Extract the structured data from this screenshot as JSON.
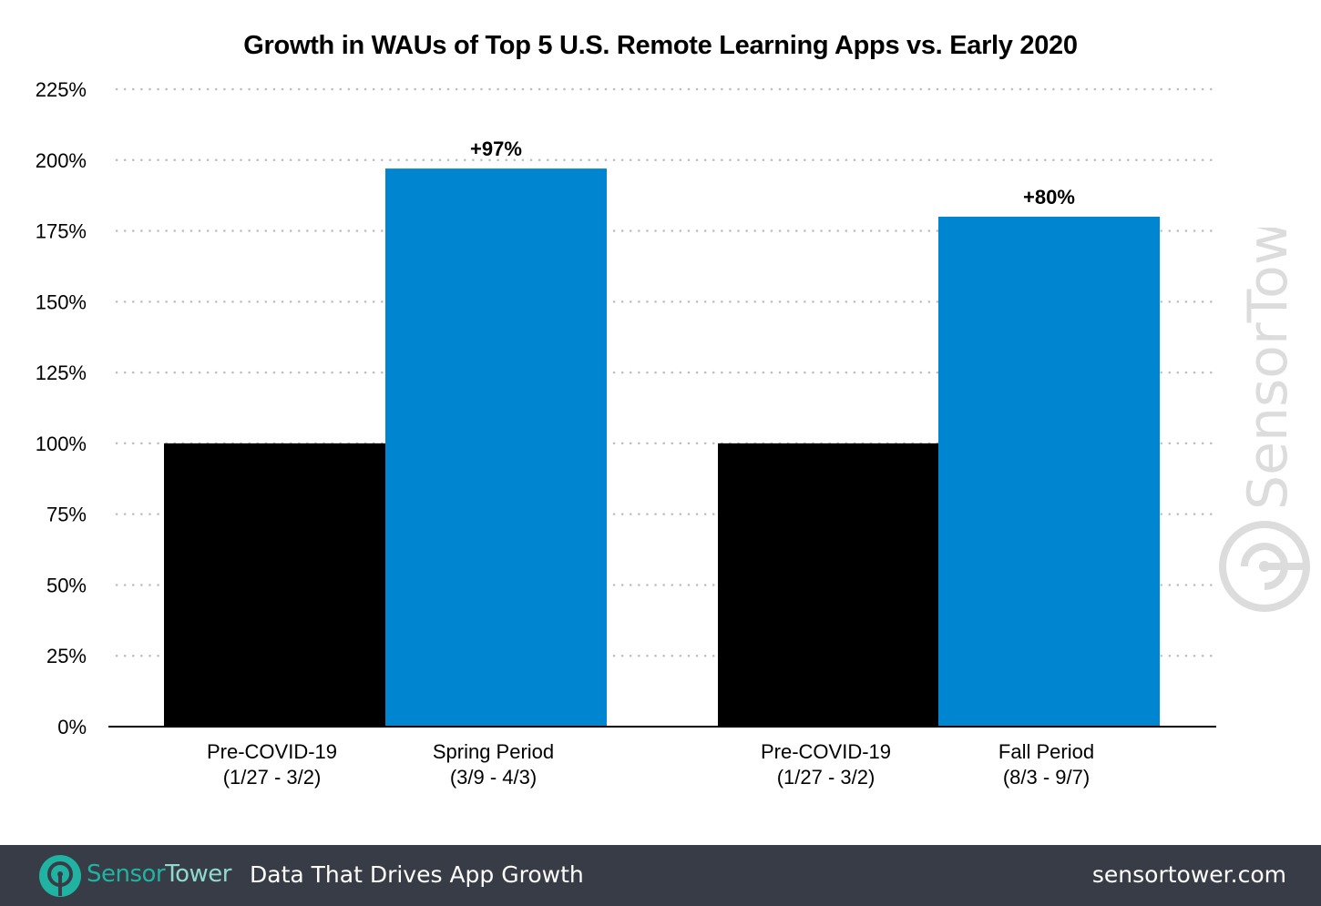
{
  "chart_data": {
    "type": "bar",
    "title": "Growth in WAUs of Top 5 U.S. Remote Learning Apps vs. Early 2020",
    "xlabel": "",
    "ylabel": "",
    "categories": [
      "Pre-COVID-19 (1/27 - 3/2)",
      "Spring Period (3/9 - 4/3)",
      "Pre-COVID-19 (1/27 - 3/2)",
      "Fall Period (8/3 - 9/7)"
    ],
    "values": [
      100,
      197,
      100,
      180
    ],
    "bar_colors": [
      "#000000",
      "#0086d1",
      "#000000",
      "#0086d1"
    ],
    "data_labels": [
      "",
      "+97%",
      "",
      "+80%"
    ],
    "ylim": [
      0,
      225
    ],
    "yticks": [
      0,
      25,
      50,
      75,
      100,
      125,
      150,
      175,
      200,
      225
    ],
    "ytick_labels": [
      "0%",
      "25%",
      "50%",
      "75%",
      "100%",
      "125%",
      "150%",
      "175%",
      "200%",
      "225%"
    ],
    "grid": "horizontal dotted",
    "legend": "none"
  },
  "watermark": "SensorTower",
  "footer": {
    "brand_a": "Sensor",
    "brand_b": "Tower",
    "tagline": "Data That Drives App Growth",
    "site": "sensortower.com"
  },
  "colors": {
    "footer_bg": "#373c47",
    "brand_teal": "#21b3a2",
    "bar_blue": "#0086d1"
  }
}
